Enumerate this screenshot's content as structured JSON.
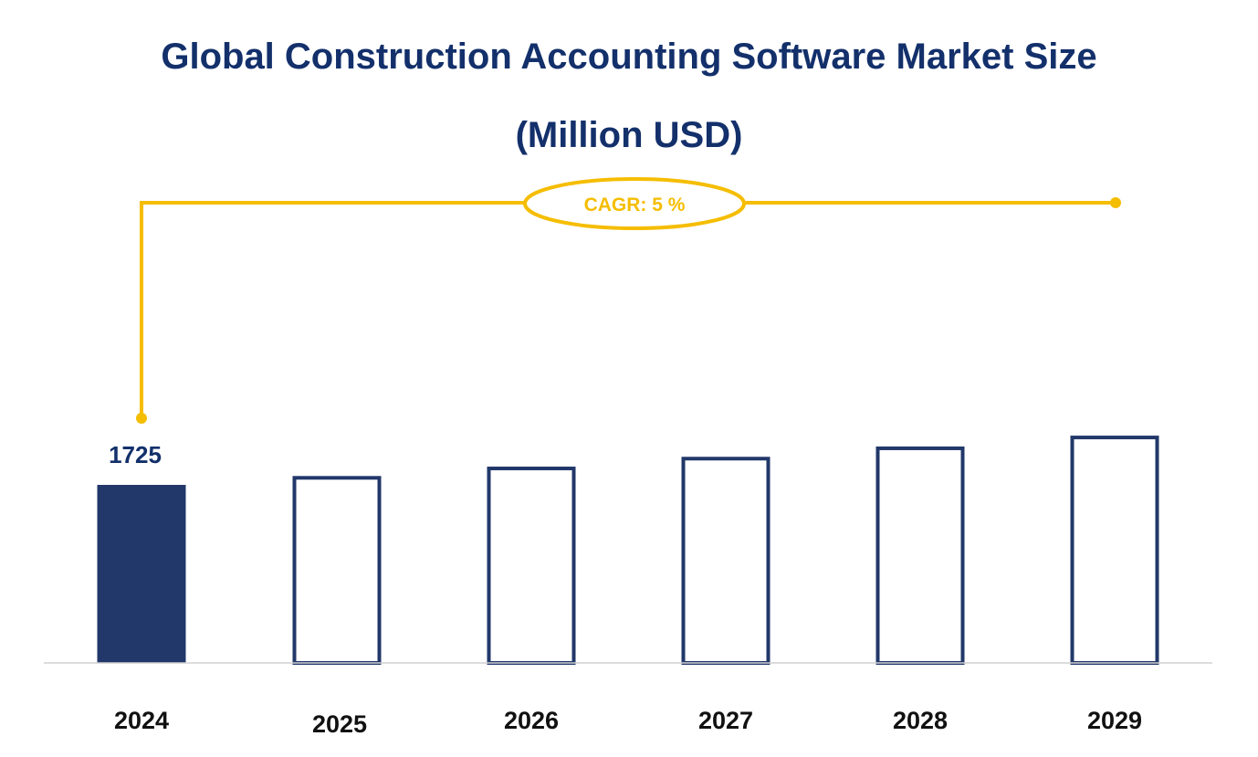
{
  "chart_data": {
    "type": "bar",
    "title": "Global Construction Accounting Software Market Size",
    "subtitle": "(Million USD)",
    "categories": [
      "2024",
      "2025",
      "2026",
      "2027",
      "2028",
      "2029"
    ],
    "values": [
      1725,
      1811,
      1902,
      1997,
      2097,
      2202
    ],
    "data_labels": [
      "1725",
      "",
      "",
      "",
      "",
      ""
    ],
    "bar_styles": [
      "filled",
      "outline",
      "outline",
      "outline",
      "outline",
      "outline"
    ],
    "annotation": "CAGR: 5 %",
    "grid": false,
    "legend": "none"
  },
  "colors": {
    "title": "#13306b",
    "bar": "#22386a",
    "accent": "#f5bd00",
    "axis": "#d0d0d0",
    "tick_text": "#111111"
  }
}
